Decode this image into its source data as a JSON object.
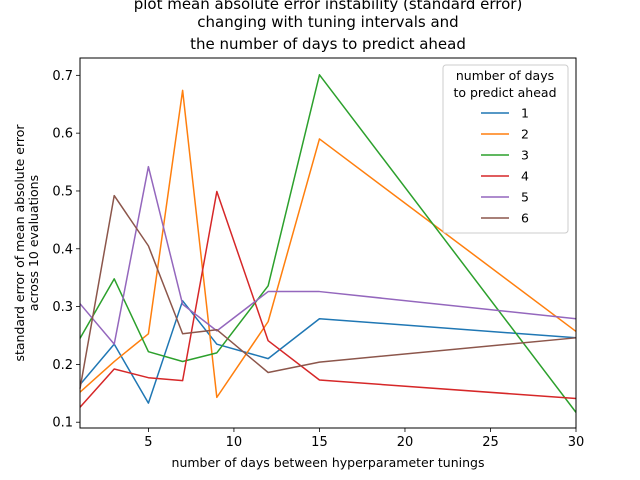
{
  "chart_data": {
    "type": "line",
    "title_lines": [
      "plot mean absolute error instability (standard error)",
      "changing with tuning intervals and",
      "the number of days to predict ahead"
    ],
    "xlabel": "number of days between hyperparameter tunings",
    "ylabel_lines": [
      "standard error of mean absolute error",
      "across 10 evaluations"
    ],
    "xlim": [
      1,
      30
    ],
    "ylim": [
      0.09,
      0.73
    ],
    "x_ticks": [
      5,
      10,
      15,
      20,
      25,
      30
    ],
    "y_ticks": [
      0.1,
      0.2,
      0.3,
      0.4,
      0.5,
      0.6,
      0.7
    ],
    "x": [
      1,
      3,
      5,
      7,
      9,
      12,
      15,
      30
    ],
    "legend_title_lines": [
      "number of days",
      "to predict ahead"
    ],
    "legend_position": "top-right",
    "grid": false,
    "series": [
      {
        "name": "1",
        "color": "#1f77b4",
        "values": [
          0.165,
          0.235,
          0.133,
          0.31,
          0.235,
          0.21,
          0.279,
          0.246
        ]
      },
      {
        "name": "2",
        "color": "#ff7f0e",
        "values": [
          0.152,
          0.205,
          0.253,
          0.674,
          0.143,
          0.274,
          0.59,
          0.257
        ]
      },
      {
        "name": "3",
        "color": "#2ca02c",
        "values": [
          0.245,
          0.348,
          0.222,
          0.205,
          0.22,
          0.336,
          0.701,
          0.117
        ]
      },
      {
        "name": "4",
        "color": "#d62728",
        "values": [
          0.126,
          0.192,
          0.177,
          0.172,
          0.499,
          0.241,
          0.173,
          0.141
        ]
      },
      {
        "name": "5",
        "color": "#9467bd",
        "values": [
          0.305,
          0.235,
          0.542,
          0.304,
          0.258,
          0.326,
          0.326,
          0.279
        ]
      },
      {
        "name": "6",
        "color": "#8c564b",
        "values": [
          0.158,
          0.492,
          0.405,
          0.253,
          0.26,
          0.186,
          0.204,
          0.246
        ]
      }
    ]
  }
}
